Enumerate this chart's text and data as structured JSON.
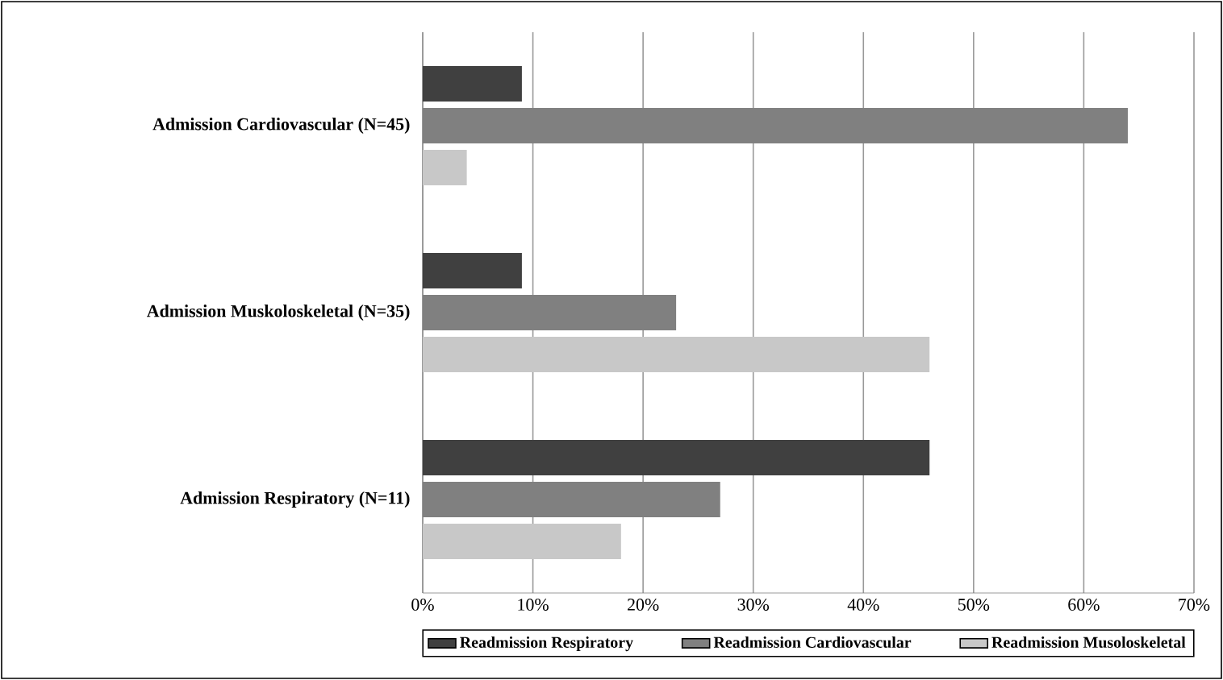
{
  "chart_data": {
    "type": "bar",
    "orientation": "horizontal",
    "categories": [
      "Admission Cardiovascular (N=45)",
      "Admission Muskoloskeletal (N=35)",
      "Admission Respiratory (N=11)"
    ],
    "series": [
      {
        "name": "Readmission Respiratory",
        "color": "#404040",
        "values": [
          9,
          9,
          46
        ]
      },
      {
        "name": "Readmission Cardiovascular",
        "color": "#808080",
        "values": [
          64,
          23,
          27
        ]
      },
      {
        "name": "Readmission Musoloskeletal",
        "color": "#c8c8c8",
        "values": [
          4,
          46,
          18
        ]
      }
    ],
    "xlim": [
      0,
      70
    ],
    "xticks": [
      {
        "value": 0,
        "label": "0%"
      },
      {
        "value": 10,
        "label": "10%"
      },
      {
        "value": 20,
        "label": "20%"
      },
      {
        "value": 30,
        "label": "30%"
      },
      {
        "value": 40,
        "label": "40%"
      },
      {
        "value": 50,
        "label": "50%"
      },
      {
        "value": 60,
        "label": "60%"
      },
      {
        "value": 70,
        "label": "70%"
      }
    ],
    "grid": "x",
    "legend": "bottom"
  }
}
